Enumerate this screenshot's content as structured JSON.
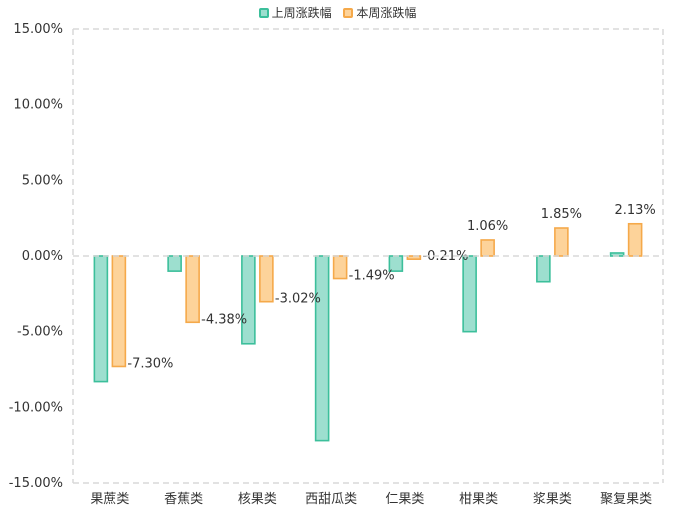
{
  "chart_data": {
    "type": "bar",
    "categories": [
      "果蔗类",
      "香蕉类",
      "核果类",
      "西甜瓜类",
      "仁果类",
      "柑果类",
      "浆果类",
      "聚复果类"
    ],
    "series": [
      {
        "name": "上周涨跌幅",
        "values": [
          -8.3,
          -1.0,
          -5.8,
          -12.2,
          -1.0,
          -5.0,
          -1.7,
          0.2
        ],
        "fill": "#9ddfcf",
        "stroke": "#3cbf9b"
      },
      {
        "name": "本周涨跌幅",
        "values": [
          -7.3,
          -4.38,
          -3.02,
          -1.49,
          -0.21,
          1.06,
          1.85,
          2.13
        ],
        "labels": [
          "-7.30%",
          "-4.38%",
          "-3.02%",
          "-1.49%",
          "-0.21%",
          "1.06%",
          "1.85%",
          "2.13%"
        ],
        "fill": "#fdd39a",
        "stroke": "#f5a94a"
      }
    ],
    "ylim": [
      -15,
      15
    ],
    "yticks": [
      15,
      10,
      5,
      0,
      -5,
      -10,
      -15
    ],
    "ytick_labels": [
      "15.00%",
      "10.00%",
      "5.00%",
      "0.00%",
      "-5.00%",
      "-10.00%",
      "-15.00%"
    ],
    "grid": false,
    "legend": "top-center",
    "title": "",
    "xlabel": "",
    "ylabel": ""
  }
}
